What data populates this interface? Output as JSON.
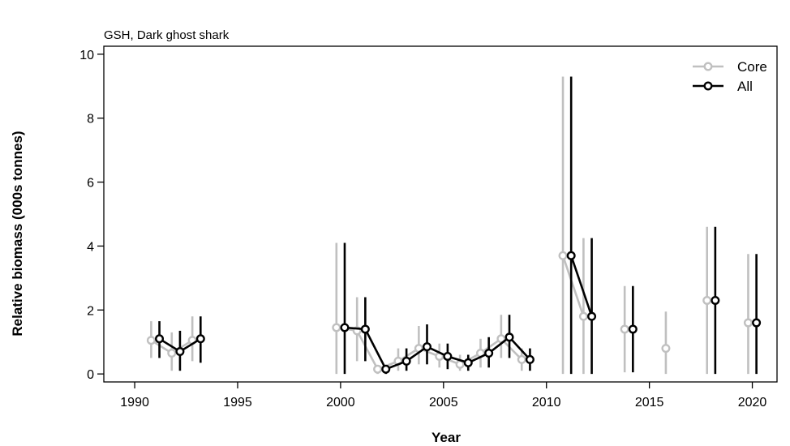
{
  "chart_data": {
    "type": "line",
    "title": "GSH, Dark ghost shark",
    "xlabel": "Year",
    "ylabel": "Relative biomass (000s tonnes)",
    "xlim": [
      1988.5,
      2021.2
    ],
    "ylim": [
      -0.25,
      10.25
    ],
    "xticks": [
      1990,
      1995,
      2000,
      2005,
      2010,
      2015,
      2020
    ],
    "yticks": [
      0,
      2,
      4,
      6,
      8,
      10
    ],
    "grid": false,
    "legend": {
      "position": "top-right",
      "entries": [
        "Core",
        "All"
      ]
    },
    "series": [
      {
        "name": "Core",
        "color": "#c0c0c0",
        "segments": [
          [
            {
              "x": 1991,
              "y": 1.05,
              "lo": 0.5,
              "hi": 1.65
            },
            {
              "x": 1992,
              "y": 0.65,
              "lo": 0.1,
              "hi": 1.3
            },
            {
              "x": 1993,
              "y": 1.05,
              "lo": 0.4,
              "hi": 1.8
            }
          ],
          [
            {
              "x": 2000,
              "y": 1.45,
              "lo": 0.0,
              "hi": 4.1
            },
            {
              "x": 2001,
              "y": 1.35,
              "lo": 0.4,
              "hi": 2.4
            },
            {
              "x": 2002,
              "y": 0.15,
              "lo": 0.0,
              "hi": 0.25
            },
            {
              "x": 2003,
              "y": 0.4,
              "lo": 0.1,
              "hi": 0.8
            },
            {
              "x": 2004,
              "y": 0.8,
              "lo": 0.3,
              "hi": 1.5
            },
            {
              "x": 2005,
              "y": 0.55,
              "lo": 0.2,
              "hi": 0.95
            },
            {
              "x": 2006,
              "y": 0.3,
              "lo": 0.1,
              "hi": 0.6
            },
            {
              "x": 2007,
              "y": 0.65,
              "lo": 0.2,
              "hi": 1.1
            },
            {
              "x": 2008,
              "y": 1.1,
              "lo": 0.5,
              "hi": 1.85
            },
            {
              "x": 2009,
              "y": 0.45,
              "lo": 0.1,
              "hi": 0.8
            }
          ],
          [
            {
              "x": 2011,
              "y": 3.7,
              "lo": 0.0,
              "hi": 9.3
            },
            {
              "x": 2012,
              "y": 1.8,
              "lo": 0.0,
              "hi": 4.25
            }
          ],
          [
            {
              "x": 2014,
              "y": 1.4,
              "lo": 0.05,
              "hi": 2.75
            }
          ],
          [
            {
              "x": 2016,
              "y": 0.8,
              "lo": 0.0,
              "hi": 1.95
            }
          ],
          [
            {
              "x": 2018,
              "y": 2.3,
              "lo": 0.0,
              "hi": 4.6
            }
          ],
          [
            {
              "x": 2020,
              "y": 1.6,
              "lo": 0.0,
              "hi": 3.75
            }
          ]
        ]
      },
      {
        "name": "All",
        "color": "#000000",
        "segments": [
          [
            {
              "x": 1991,
              "y": 1.1,
              "lo": 0.5,
              "hi": 1.65
            },
            {
              "x": 1992,
              "y": 0.7,
              "lo": 0.1,
              "hi": 1.35
            },
            {
              "x": 1993,
              "y": 1.1,
              "lo": 0.35,
              "hi": 1.8
            }
          ],
          [
            {
              "x": 2000,
              "y": 1.45,
              "lo": 0.0,
              "hi": 4.1
            },
            {
              "x": 2001,
              "y": 1.4,
              "lo": 0.4,
              "hi": 2.4
            },
            {
              "x": 2002,
              "y": 0.15,
              "lo": 0.0,
              "hi": 0.25
            },
            {
              "x": 2003,
              "y": 0.4,
              "lo": 0.1,
              "hi": 0.8
            },
            {
              "x": 2004,
              "y": 0.85,
              "lo": 0.3,
              "hi": 1.55
            },
            {
              "x": 2005,
              "y": 0.55,
              "lo": 0.15,
              "hi": 0.95
            },
            {
              "x": 2006,
              "y": 0.35,
              "lo": 0.1,
              "hi": 0.6
            },
            {
              "x": 2007,
              "y": 0.65,
              "lo": 0.2,
              "hi": 1.15
            },
            {
              "x": 2008,
              "y": 1.15,
              "lo": 0.5,
              "hi": 1.85
            },
            {
              "x": 2009,
              "y": 0.45,
              "lo": 0.1,
              "hi": 0.8
            }
          ],
          [
            {
              "x": 2011,
              "y": 3.7,
              "lo": 0.0,
              "hi": 9.3
            },
            {
              "x": 2012,
              "y": 1.8,
              "lo": 0.0,
              "hi": 4.25
            }
          ],
          [
            {
              "x": 2014,
              "y": 1.4,
              "lo": 0.05,
              "hi": 2.75
            }
          ],
          [
            {
              "x": 2018,
              "y": 2.3,
              "lo": 0.0,
              "hi": 4.6
            }
          ],
          [
            {
              "x": 2020,
              "y": 1.6,
              "lo": 0.0,
              "hi": 3.75
            }
          ]
        ]
      }
    ]
  }
}
